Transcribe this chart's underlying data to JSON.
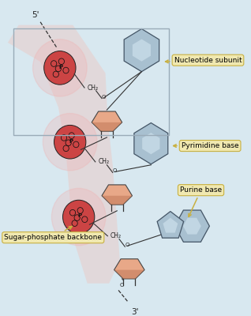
{
  "bg_color": "#d8e8f0",
  "fig_width": 3.18,
  "fig_height": 4.0,
  "dpi": 100,
  "phosphate_color": "#cc4444",
  "phosphate_dot_color": "#aa2222",
  "sugar_top_color": "#e8a888",
  "sugar_bot_color": "#c07858",
  "base_fill": "#a8c0d0",
  "base_inner": "#c8dce8",
  "base_edge": "#445566",
  "arrow_fill": "#f0e8b0",
  "arrow_edge": "#c8b040",
  "box_edge": "#9aabb8",
  "nucleotide_label": "Nucleotide subunit",
  "pyrimidine_label": "Pyrimidine base",
  "purine_label": "Purine base",
  "backbone_label": "Sugar-phosphate backbone",
  "label_fontsize": 6.5
}
